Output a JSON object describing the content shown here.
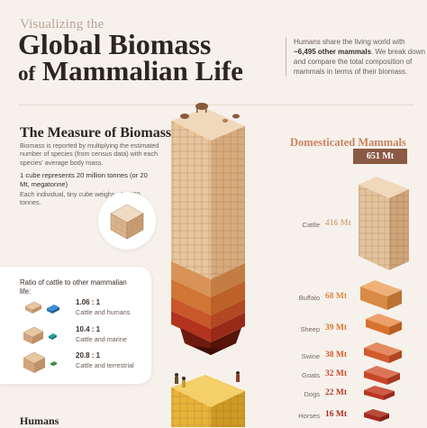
{
  "header": {
    "kicker": "Visualizing the",
    "title_line1": "Global Biomass",
    "title_of": "of",
    "title_line2": "Mammalian Life"
  },
  "intro": {
    "before": "Humans share the living world with ",
    "highlight": "~6,495 other mammals",
    "after": ". We break down and compare the total composition of mammals in terms of their biomass."
  },
  "measure": {
    "heading": "The Measure of Biomass",
    "body": "Biomass is reported by multiplying the estimated number of species (from census data) with each species' average body mass.",
    "cube_heading": "1 cube represents 20 million tonnes (or 20 Mt, megatonne)",
    "cube_body": "Each individual, tiny cube weighs ~20,000 tonnes."
  },
  "ratio": {
    "title": "Ratio of cattle to other mammalian life:",
    "rows": [
      {
        "value": "1.06 : 1",
        "label": "Cattle and humans",
        "color": "#3b8fd6"
      },
      {
        "value": "10.4 : 1",
        "label": "Cattle and marine",
        "color": "#1aa3a0"
      },
      {
        "value": "20.8 : 1",
        "label": "Cattle and terrestrial",
        "color": "#3f9b3f"
      }
    ]
  },
  "domesticated": {
    "heading": "Domesticated Mammals",
    "total": "651 Mt",
    "items": [
      {
        "name": "Cattle",
        "value": "416 Mt",
        "color": "#d7ad82"
      },
      {
        "name": "Buffalo",
        "value": "68 Mt",
        "color": "#d98a44"
      },
      {
        "name": "Sheep",
        "value": "39 Mt",
        "color": "#d8732f"
      },
      {
        "name": "Swine",
        "value": "38 Mt",
        "color": "#d35a2c"
      },
      {
        "name": "Goats",
        "value": "32 Mt",
        "color": "#c9472a"
      },
      {
        "name": "Dogs",
        "value": "22 Mt",
        "color": "#b93624"
      },
      {
        "name": "Horses",
        "value": "16 Mt",
        "color": "#a52a20"
      }
    ]
  },
  "humans": {
    "heading": "Humans"
  },
  "colors": {
    "cattle": "#e8c9a4",
    "accent": "#c9835f",
    "badge": "#8a5a44",
    "humans": "#e7b43a"
  }
}
